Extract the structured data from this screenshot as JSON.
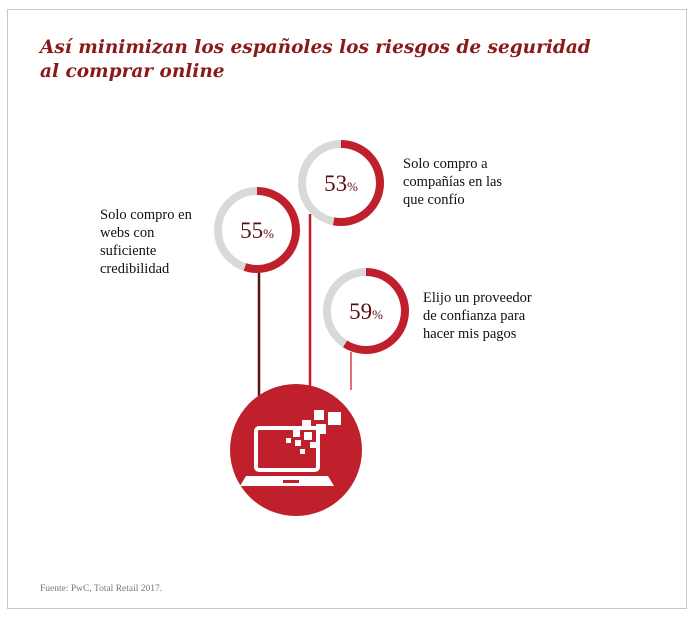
{
  "title": "Así minimizan los españoles los riesgos de seguridad al comprar online",
  "source": "Fuente: PwC, Total Retail 2017.",
  "colors": {
    "accent": "#c0202b",
    "track": "#d9d9d9",
    "title": "#8a1a1a",
    "stem_dark": "#5a1010",
    "stem_light": "#e07080"
  },
  "icon": "laptop-icon",
  "chart_data": {
    "type": "pie",
    "title": "Así minimizan los españoles los riesgos de seguridad al comprar online",
    "unit": "%",
    "items": [
      {
        "label": "Solo compro en webs con suficiente credibilidad",
        "value": 55,
        "display": "55"
      },
      {
        "label": "Solo compro a compañías en las que confío",
        "value": 53,
        "display": "53"
      },
      {
        "label": "Elijo un proveedor de confianza para hacer mis pagos",
        "value": 59,
        "display": "59"
      }
    ]
  },
  "labels": {
    "item0": [
      "Solo compro en",
      "webs con",
      "suficiente",
      "credibilidad"
    ],
    "item1": [
      "Solo compro a",
      "compañías en las",
      "que confío"
    ],
    "item2": [
      "Elijo un proveedor",
      "de confianza para",
      "hacer mis pagos"
    ]
  }
}
